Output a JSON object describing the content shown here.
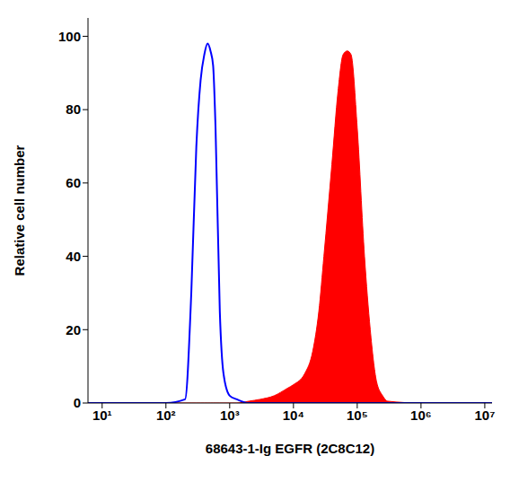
{
  "chart_data": {
    "type": "line",
    "x_label": "68643-1-Ig EGFR (2C8C12)",
    "y_label": "Relative cell number",
    "x": [
      6,
      100,
      200,
      250,
      300,
      350,
      400,
      450,
      500,
      550,
      600,
      700,
      800,
      1000,
      1300,
      2000,
      3000,
      5000,
      8000,
      10000,
      15000,
      20000,
      25000,
      30000,
      40000,
      50000,
      60000,
      70000,
      80000,
      100000,
      130000,
      160000,
      200000,
      250000,
      300000,
      1000000,
      13000000
    ],
    "series": [
      {
        "type": "line",
        "color": "#0000ff",
        "values": [
          0,
          0,
          1,
          30,
          70,
          88,
          95,
          98,
          96,
          92,
          75,
          25,
          8,
          2,
          1,
          0,
          0,
          0,
          0,
          0,
          0,
          0,
          0,
          0,
          0,
          0,
          0,
          0,
          0,
          0,
          0,
          0,
          0,
          0,
          0,
          0,
          0
        ]
      },
      {
        "type": "area",
        "color": "#ff0000",
        "values": [
          0,
          0,
          0,
          0,
          0,
          0,
          0,
          0,
          0,
          0,
          0,
          0,
          0,
          0,
          0,
          0.5,
          1,
          2,
          4,
          5,
          8,
          14,
          25,
          40,
          65,
          85,
          95,
          96,
          95,
          75,
          40,
          20,
          6,
          2,
          0.5,
          0,
          0
        ]
      }
    ],
    "log": "x",
    "xlim": [
      6,
      13000000
    ],
    "xticks": [
      {
        "value": 10,
        "label": "10¹"
      },
      {
        "value": 100,
        "label": "10²"
      },
      {
        "value": 1000,
        "label": "10³"
      },
      {
        "value": 10000,
        "label": "10⁴"
      },
      {
        "value": 100000,
        "label": "10⁵"
      },
      {
        "value": 1000000,
        "label": "10⁶"
      },
      {
        "value": 10000000,
        "label": "10⁷"
      }
    ],
    "ylim": [
      0,
      105
    ],
    "yticks": [
      0,
      20,
      40,
      60,
      80,
      100
    ],
    "grid": false
  }
}
